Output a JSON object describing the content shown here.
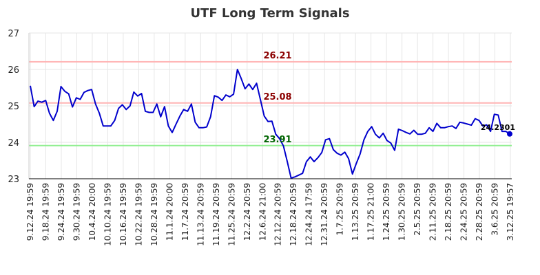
{
  "chart_data": {
    "type": "line",
    "title": "UTF Long Term Signals",
    "xlabel": "",
    "ylabel": "",
    "ylim": [
      23,
      27
    ],
    "yticks": [
      23,
      24,
      25,
      26,
      27
    ],
    "grid": true,
    "x_tick_labels": [
      "9.12.24 19:59",
      "9.18.24 19:59",
      "9.24.24 19:59",
      "9.30.24 19:59",
      "10.4.24 20:00",
      "10.10.24 19:59",
      "10.16.24 19:59",
      "10.22.24 19:59",
      "10.28.24 19:59",
      "11.1.24 20:00",
      "11.7.24 20:59",
      "11.13.24 20:59",
      "11.19.24 20:59",
      "11.25.24 20:59",
      "12.2.24 20:59",
      "12.6.24 21:00",
      "12.12.24 20:59",
      "12.18.24 20:59",
      "12.24.24 17:59",
      "12.31.24 20:59",
      "1.7.25 20:59",
      "1.13.25 20:59",
      "1.17.25 21:00",
      "1.24.25 20:59",
      "1.30.25 20:59",
      "2.5.25 20:59",
      "2.11.25 20:59",
      "2.18.25 20:59",
      "2.24.25 20:59",
      "2.28.25 20:59",
      "3.6.25 20:59",
      "3.12.25 19:57"
    ],
    "reference_lines": [
      {
        "value": 26.21,
        "label": "26.21",
        "line_color": "#ffb3b3",
        "label_color": "#8b0000"
      },
      {
        "value": 25.08,
        "label": "25.08",
        "line_color": "#ffb3b3",
        "label_color": "#8b0000"
      },
      {
        "value": 23.91,
        "label": "23.91",
        "line_color": "#90ee90",
        "label_color": "#006400"
      }
    ],
    "series": [
      {
        "color": "#0000cc",
        "values": [
          25.55,
          24.98,
          25.13,
          25.1,
          25.15,
          24.8,
          24.6,
          24.85,
          25.53,
          25.4,
          25.33,
          24.97,
          25.22,
          25.18,
          25.37,
          25.42,
          25.45,
          25.05,
          24.8,
          24.45,
          24.45,
          24.45,
          24.6,
          24.93,
          25.03,
          24.9,
          25.0,
          25.38,
          25.27,
          25.34,
          24.85,
          24.82,
          24.82,
          25.05,
          24.7,
          24.98,
          24.45,
          24.27,
          24.5,
          24.72,
          24.9,
          24.85,
          25.05,
          24.55,
          24.4,
          24.4,
          24.42,
          24.7,
          25.28,
          25.24,
          25.15,
          25.3,
          25.25,
          25.32,
          26.0,
          25.75,
          25.47,
          25.6,
          25.45,
          25.62,
          25.17,
          24.72,
          24.57,
          24.58,
          24.22,
          24.1,
          23.9,
          23.47,
          23.02,
          23.05,
          23.1,
          23.15,
          23.47,
          23.6,
          23.47,
          23.58,
          23.72,
          24.07,
          24.1,
          23.8,
          23.7,
          23.65,
          23.73,
          23.55,
          23.13,
          23.42,
          23.68,
          24.07,
          24.3,
          24.43,
          24.22,
          24.12,
          24.25,
          24.05,
          23.98,
          23.78,
          24.36,
          24.32,
          24.27,
          24.23,
          24.33,
          24.22,
          24.22,
          24.25,
          24.4,
          24.3,
          24.52,
          24.4,
          24.4,
          24.43,
          24.45,
          24.38,
          24.55,
          24.53,
          24.5,
          24.47,
          24.65,
          24.6,
          24.45,
          24.48,
          24.3,
          24.77,
          24.75,
          24.3,
          24.3,
          24.2301
        ]
      }
    ],
    "last_value_label": "24.2301"
  }
}
